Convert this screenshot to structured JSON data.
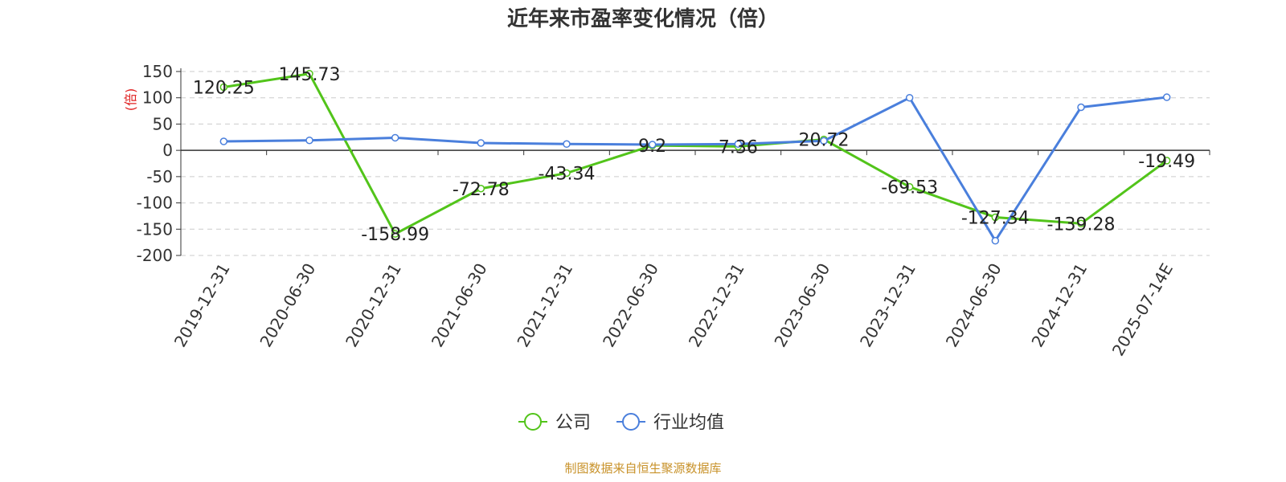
{
  "chart_data": {
    "type": "line",
    "title": "近年来市盈率变化情况（倍）",
    "ylabel": "(倍)",
    "ylabel_color": "#e02020",
    "categories": [
      "2019-12-31",
      "2020-06-30",
      "2020-12-31",
      "2021-06-30",
      "2021-12-31",
      "2022-06-30",
      "2022-12-31",
      "2023-06-30",
      "2023-12-31",
      "2024-06-30",
      "2024-12-31",
      "2025-07-14E"
    ],
    "yticks": [
      150,
      100,
      50,
      0,
      -50,
      -100,
      -150,
      -200
    ],
    "ylim": [
      -200,
      150
    ],
    "grid": true,
    "legend_position": "bottom",
    "series": [
      {
        "name": "公司",
        "color": "#52c41a",
        "label_data": true,
        "values": [
          120.25,
          145.73,
          -158.99,
          -72.78,
          -43.34,
          9.2,
          7.36,
          20.72,
          -69.53,
          -127.34,
          -139.28,
          -19.49
        ]
      },
      {
        "name": "行业均值",
        "color": "#4a7fdc",
        "label_data": false,
        "values": [
          17,
          19,
          24,
          14,
          12,
          11,
          12,
          18,
          100,
          -172,
          82,
          101
        ]
      }
    ]
  },
  "footer": {
    "source": "制图数据来自恒生聚源数据库",
    "color": "#c8922a"
  }
}
